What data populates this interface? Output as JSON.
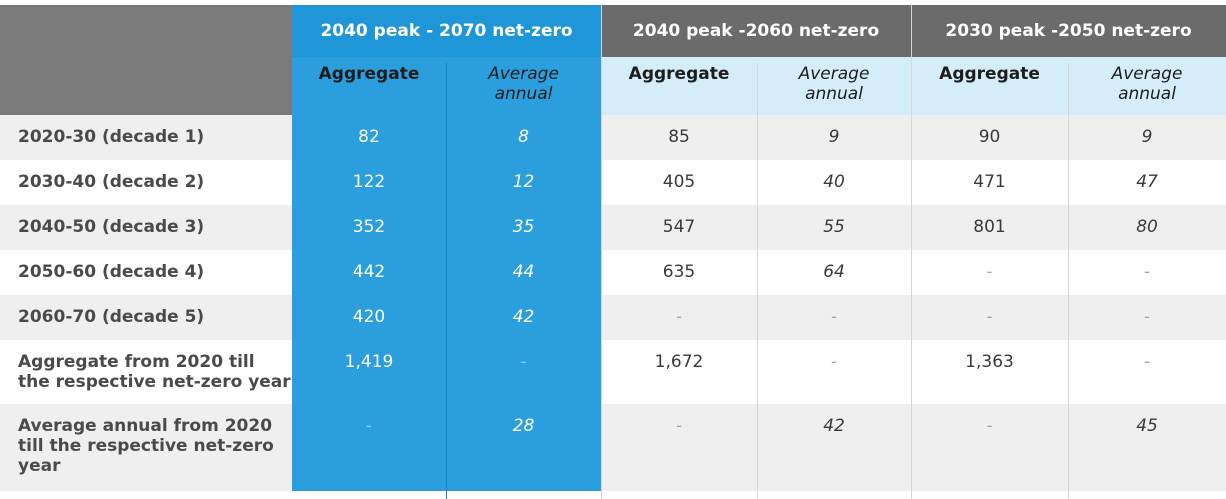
{
  "table": {
    "groups": [
      {
        "label": "2040 peak - 2070 net-zero"
      },
      {
        "label": "2040 peak -2060 net-zero"
      },
      {
        "label": "2030 peak -2050 net-zero"
      }
    ],
    "subheaders": {
      "aggregate": "Aggregate",
      "average_annual_line1": "Average",
      "average_annual_line2": "annual"
    },
    "rows": [
      {
        "label": "2020-30 (decade 1)",
        "values": [
          "82",
          "8",
          "85",
          "9",
          "90",
          "9"
        ]
      },
      {
        "label": "2030-40 (decade 2)",
        "values": [
          "122",
          "12",
          "405",
          "40",
          "471",
          "47"
        ]
      },
      {
        "label": "2040-50 (decade 3)",
        "values": [
          "352",
          "35",
          "547",
          "55",
          "801",
          "80"
        ]
      },
      {
        "label": "2050-60 (decade 4)",
        "values": [
          "442",
          "44",
          "635",
          "64",
          "-",
          "-"
        ]
      },
      {
        "label": "2060-70 (decade 5)",
        "values": [
          "420",
          "42",
          "-",
          "-",
          "-",
          "-"
        ]
      },
      {
        "label_line1": "Aggregate from 2020 till",
        "label_line2": "the respective net-zero year",
        "values": [
          "1,419",
          "-",
          "1,672",
          "-",
          "1,363",
          "-"
        ]
      },
      {
        "label_line1": "Average annual from 2020",
        "label_line2": "till the respective net-zero",
        "label_line3": "year",
        "values": [
          "-",
          "28",
          "-",
          "42",
          "-",
          "45"
        ]
      }
    ]
  }
}
